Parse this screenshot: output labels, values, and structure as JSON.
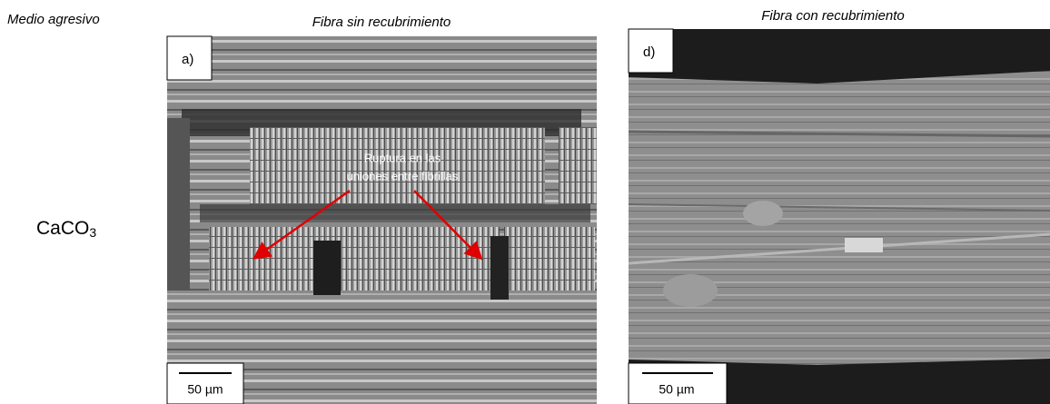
{
  "row_label": "Medio agresivo",
  "medium": {
    "formula": "CaCO",
    "subscript": "3"
  },
  "panels": [
    {
      "title": "Fibra sin recubrimiento",
      "label": "a)",
      "scale_bar": "50 µm",
      "annotation": [
        "Ruptura en las",
        "uniones entre fibrillas"
      ]
    },
    {
      "title": "Fibra con recubrimiento",
      "label": "d)",
      "scale_bar": "50 µm"
    }
  ]
}
